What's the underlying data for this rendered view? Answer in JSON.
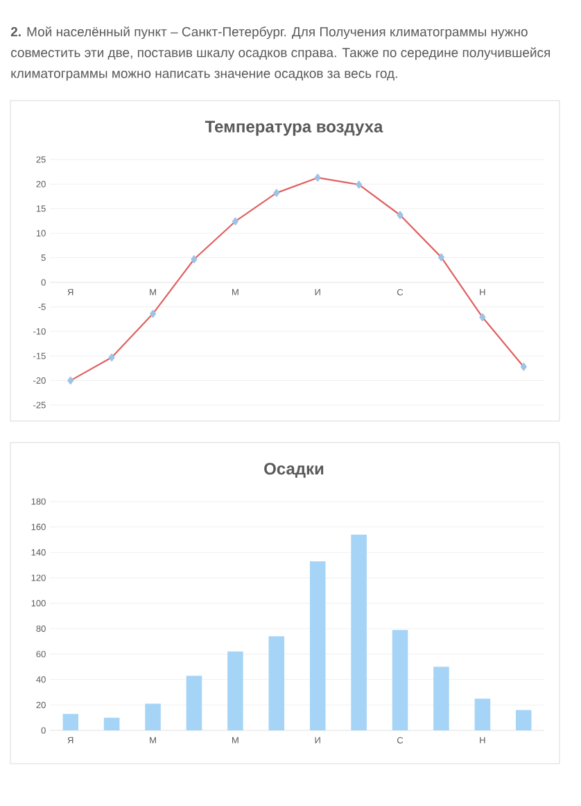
{
  "chart_data": [
    {
      "type": "line",
      "title": "Температура воздуха",
      "annotations": [
        "**2.** Мой населённый пункт – Санкт-Петербург. Для Получения климатограммы нужно совместить эти две, поставив шкалу осадков справа. Также по середине получившейся климатограммы можно написать значение осадков за весь год."
      ],
      "categories": [
        "Я",
        null,
        "М",
        null,
        "М",
        null,
        "И",
        null,
        "С",
        null,
        "Н",
        null
      ],
      "values": [
        -20,
        -15.3,
        -6.4,
        4.7,
        12.4,
        18.2,
        21.3,
        19.9,
        13.7,
        5.1,
        -7.1,
        -17.2
      ],
      "color": "#e06060",
      "marker": "diamond",
      "ylim": [
        -25,
        25
      ],
      "yticks": [
        -25,
        -20,
        -15,
        -10,
        -5,
        0,
        5,
        10,
        15,
        20,
        25
      ],
      "grid": "y"
    },
    {
      "type": "bar",
      "title": "Осадки",
      "categories": [
        "Я",
        null,
        "М",
        null,
        "М",
        null,
        "И",
        null,
        "С",
        null,
        "Н",
        null
      ],
      "values": [
        13,
        10,
        21,
        43,
        62,
        74,
        133,
        154,
        79,
        50,
        25,
        16
      ],
      "color": "#a6d4f7",
      "ylim": [
        0,
        180
      ],
      "yticks": [
        0,
        20,
        40,
        60,
        80,
        100,
        120,
        140,
        160,
        180
      ],
      "grid": "y"
    }
  ]
}
